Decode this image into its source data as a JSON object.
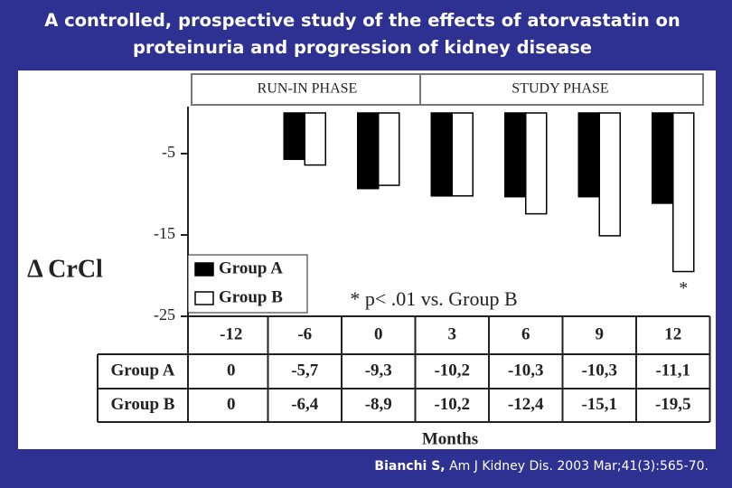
{
  "chart_data": {
    "type": "bar",
    "title": "A controlled, prospective study of the effects of atorvastatin on proteinuria and progression of kidney disease",
    "y_label": "Δ CrCl",
    "x_label": "Months",
    "phases": [
      "RUN-IN PHASE",
      "STUDY PHASE"
    ],
    "annotation": "* p< .01 vs. Group B",
    "significance_marker": "*",
    "categories": [
      "-12",
      "-6",
      "0",
      "3",
      "6",
      "9",
      "12"
    ],
    "series": [
      {
        "name": "Group A",
        "color": "#000000",
        "values": [
          0,
          -5.7,
          -9.3,
          -10.2,
          -10.3,
          -10.3,
          -11.1
        ],
        "value_labels": [
          "0",
          "-5,7",
          "-9,3",
          "-10,2",
          "-10,3",
          "-10,3",
          "-11,1"
        ]
      },
      {
        "name": "Group B",
        "color": "#ffffff",
        "values": [
          0,
          -6.4,
          -8.9,
          -10.2,
          -12.4,
          -15.1,
          -19.5
        ],
        "value_labels": [
          "0",
          "-6,4",
          "-8,9",
          "-10,2",
          "-12,4",
          "-15,1",
          "-19,5"
        ]
      }
    ],
    "ylim": [
      -25,
      0
    ],
    "yticks": [
      -5,
      -15,
      -25
    ],
    "source_author": "Bianchi S,",
    "source": "Am J Kidney Dis. 2003 Mar;41(3):565-70."
  }
}
